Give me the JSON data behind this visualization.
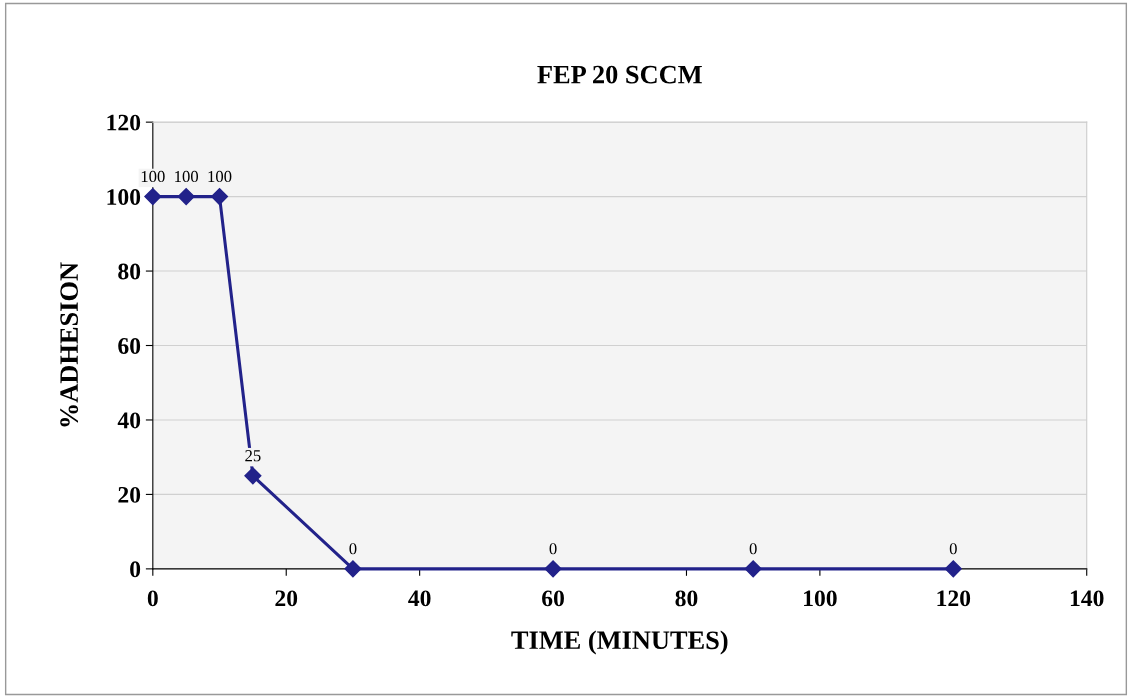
{
  "chart_data": {
    "type": "line",
    "title": "FEP 20 SCCM",
    "xlabel": "TIME (MINUTES)",
    "ylabel": "%ADHESION",
    "x": [
      0,
      5,
      10,
      15,
      30,
      60,
      90,
      120
    ],
    "series": [
      {
        "color": "#22228a",
        "values": [
          100,
          100,
          100,
          25,
          0,
          0,
          0,
          0
        ]
      }
    ],
    "xlim": [
      0,
      140
    ],
    "ylim": [
      0,
      120
    ],
    "xticks": [
      0,
      20,
      40,
      60,
      80,
      100,
      120,
      140
    ],
    "yticks": [
      0,
      20,
      40,
      60,
      80,
      100,
      120
    ],
    "grid": "y",
    "marker": "diamond",
    "line_style": "solid",
    "data_labels": true
  }
}
